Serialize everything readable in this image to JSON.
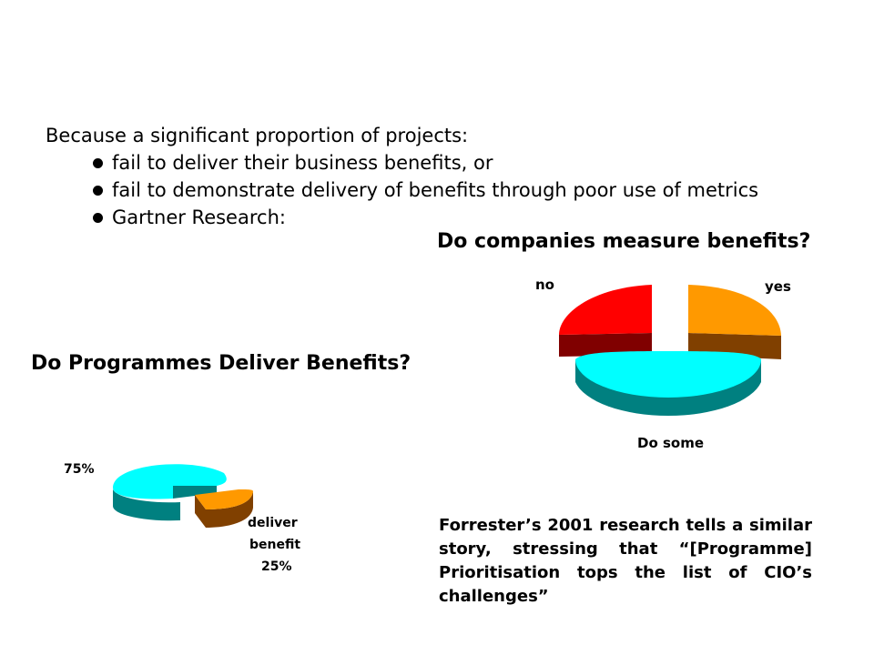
{
  "intro": "Because a significant proportion of projects:",
  "bullets": [
    "fail to deliver their business benefits, or",
    "fail to demonstrate delivery of benefits through poor use of metrics",
    "Gartner Research:"
  ],
  "chart_data": [
    {
      "type": "pie",
      "title": "Do companies measure benefits?",
      "categories": [
        "no",
        "yes",
        "Do some"
      ],
      "colors": [
        "#ff0000",
        "#ff9900",
        "#00ffff"
      ]
    },
    {
      "type": "pie",
      "title": "Do Programmes Deliver Benefits?",
      "categories": [
        "",
        "deliver benefit"
      ],
      "values": [
        75,
        25
      ],
      "value_labels": [
        "75%",
        "25%"
      ],
      "label_lines": [
        "deliver",
        "benefit"
      ],
      "colors": [
        "#00ffff",
        "#ff9900"
      ]
    }
  ],
  "forrester_text": "Forrester’s 2001 research tells a similar story, stressing that “[Programme] Prioritisation tops the list of CIO’s challenges”"
}
